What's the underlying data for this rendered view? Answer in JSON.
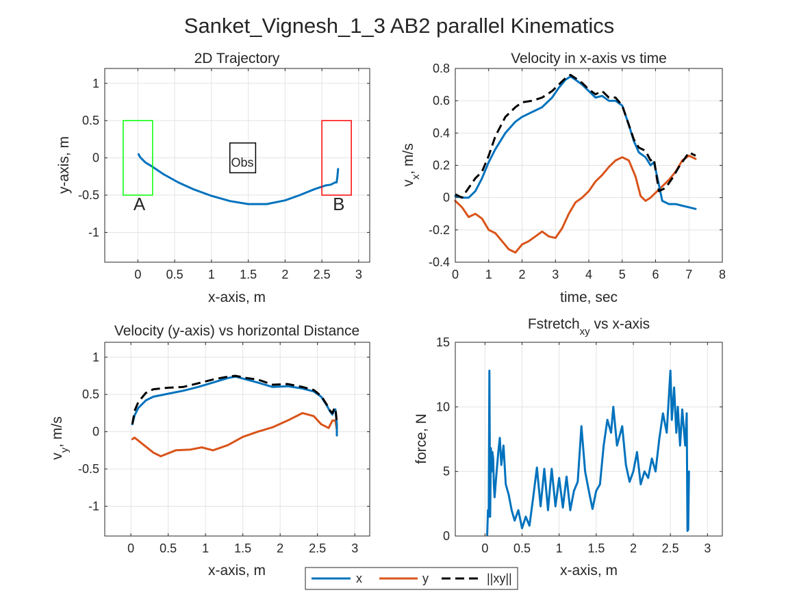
{
  "figure": {
    "suptitle": "Sanket_Vignesh_1_3    AB2    parallel    Kinematics"
  },
  "colors": {
    "x": "#0072BD",
    "y": "#D95319",
    "xy": "#000000",
    "startBox": "#00FF00",
    "endBox": "#FF0000",
    "obsBox": "#000000"
  },
  "legend": {
    "items": [
      {
        "label": "x",
        "key": "x"
      },
      {
        "label": "y",
        "key": "y"
      },
      {
        "label": "||xy||",
        "key": "xy"
      }
    ]
  },
  "chart_data": [
    {
      "id": "trajectory",
      "type": "line",
      "title": "2D Trajectory",
      "xlabel": "x-axis, m",
      "ylabel": "y-axis, m",
      "xlim": [
        -0.45,
        3.15
      ],
      "ylim": [
        -1.4,
        1.2
      ],
      "xticks": [
        "0",
        "0.5",
        "1",
        "1.5",
        "2",
        "2.5",
        "3"
      ],
      "yticks": [
        "-1",
        "-0.5",
        "0",
        "0.5",
        "1"
      ],
      "grid": true,
      "annotations": [
        {
          "text": "A",
          "x": 0.02,
          "y": -0.62
        },
        {
          "text": "B",
          "x": 2.73,
          "y": -0.62
        },
        {
          "text": "Obs",
          "x": 1.42,
          "y": -0.06
        }
      ],
      "boxes": [
        {
          "key": "startBox",
          "x0": -0.2,
          "x1": 0.2,
          "y0": -0.5,
          "y1": 0.5
        },
        {
          "key": "endBox",
          "x0": 2.5,
          "x1": 2.9,
          "y0": -0.5,
          "y1": 0.5
        },
        {
          "key": "obsBox",
          "x0": 1.25,
          "x1": 1.6,
          "y0": -0.2,
          "y1": 0.2
        }
      ],
      "series": [
        {
          "key": "x",
          "x": [
            0.01,
            0.03,
            0.06,
            0.1,
            0.2,
            0.35,
            0.55,
            0.75,
            1.0,
            1.25,
            1.5,
            1.75,
            2.0,
            2.2,
            2.4,
            2.55,
            2.62,
            2.66,
            2.68,
            2.7,
            2.71,
            2.72
          ],
          "y": [
            0.05,
            0.01,
            -0.02,
            -0.06,
            -0.12,
            -0.22,
            -0.33,
            -0.42,
            -0.51,
            -0.58,
            -0.62,
            -0.62,
            -0.57,
            -0.5,
            -0.42,
            -0.37,
            -0.36,
            -0.34,
            -0.33,
            -0.33,
            -0.26,
            -0.15
          ]
        }
      ]
    },
    {
      "id": "vx_time",
      "type": "line",
      "title": "Velocity in x-axis vs time",
      "xlabel": "time, sec",
      "ylabel": "v",
      "ylabel_sub": "x",
      "ylabel_suffix": ", m/s",
      "xlim": [
        0,
        8
      ],
      "ylim": [
        -0.4,
        0.8
      ],
      "xticks": [
        "0",
        "1",
        "2",
        "3",
        "4",
        "5",
        "6",
        "7",
        "8"
      ],
      "yticks": [
        "-0.4",
        "-0.2",
        "0",
        "0.2",
        "0.4",
        "0.6",
        "0.8"
      ],
      "grid": true,
      "series": [
        {
          "key": "x",
          "x": [
            0,
            0.2,
            0.4,
            0.6,
            0.8,
            1.0,
            1.2,
            1.5,
            1.8,
            2.0,
            2.3,
            2.6,
            2.9,
            3.1,
            3.3,
            3.45,
            3.6,
            3.8,
            4.0,
            4.2,
            4.4,
            4.6,
            4.8,
            5.0,
            5.2,
            5.35,
            5.5,
            5.7,
            5.85,
            5.95,
            6.1,
            6.2,
            6.4,
            6.6,
            6.8,
            7.0,
            7.2
          ],
          "y": [
            0.01,
            0.0,
            0.0,
            0.04,
            0.12,
            0.22,
            0.3,
            0.4,
            0.47,
            0.5,
            0.53,
            0.56,
            0.62,
            0.68,
            0.73,
            0.75,
            0.73,
            0.7,
            0.66,
            0.62,
            0.63,
            0.6,
            0.6,
            0.57,
            0.45,
            0.35,
            0.28,
            0.25,
            0.2,
            0.22,
            0.08,
            -0.02,
            -0.04,
            -0.04,
            -0.05,
            -0.06,
            -0.07
          ]
        },
        {
          "key": "y",
          "x": [
            0,
            0.2,
            0.4,
            0.6,
            0.8,
            1.0,
            1.2,
            1.4,
            1.6,
            1.8,
            2.0,
            2.2,
            2.4,
            2.6,
            2.8,
            3.0,
            3.2,
            3.4,
            3.6,
            3.8,
            4.0,
            4.2,
            4.4,
            4.6,
            4.8,
            5.0,
            5.2,
            5.4,
            5.55,
            5.7,
            5.85,
            6.0,
            6.2,
            6.4,
            6.6,
            6.8,
            7.0,
            7.2
          ],
          "y": [
            -0.02,
            -0.06,
            -0.12,
            -0.1,
            -0.13,
            -0.2,
            -0.22,
            -0.27,
            -0.32,
            -0.34,
            -0.29,
            -0.27,
            -0.24,
            -0.21,
            -0.24,
            -0.25,
            -0.19,
            -0.1,
            -0.03,
            0.0,
            0.04,
            0.1,
            0.14,
            0.19,
            0.23,
            0.25,
            0.23,
            0.13,
            0.01,
            -0.02,
            0.0,
            0.03,
            0.07,
            0.11,
            0.16,
            0.23,
            0.26,
            0.24
          ]
        },
        {
          "key": "xy",
          "x": [
            0,
            0.2,
            0.4,
            0.6,
            0.8,
            1.0,
            1.2,
            1.5,
            1.8,
            2.0,
            2.3,
            2.6,
            2.9,
            3.1,
            3.3,
            3.45,
            3.6,
            3.8,
            4.0,
            4.2,
            4.4,
            4.6,
            4.8,
            5.0,
            5.2,
            5.35,
            5.5,
            5.7,
            5.85,
            5.95,
            6.1,
            6.3,
            6.5,
            6.7,
            6.9,
            7.0,
            7.2
          ],
          "y": [
            0.02,
            0.0,
            0.06,
            0.12,
            0.16,
            0.26,
            0.38,
            0.5,
            0.56,
            0.59,
            0.6,
            0.62,
            0.66,
            0.7,
            0.74,
            0.76,
            0.74,
            0.71,
            0.67,
            0.64,
            0.66,
            0.62,
            0.62,
            0.57,
            0.45,
            0.36,
            0.31,
            0.29,
            0.23,
            0.24,
            0.04,
            0.06,
            0.12,
            0.19,
            0.25,
            0.28,
            0.26
          ]
        }
      ]
    },
    {
      "id": "vy_x",
      "type": "line",
      "title": "Velocity (y-axis) vs horizontal Distance",
      "xlabel": "x-axis, m",
      "ylabel": "v",
      "ylabel_sub": "y",
      "ylabel_suffix": ", m/s",
      "xlim": [
        -0.35,
        3.2
      ],
      "ylim": [
        -1.4,
        1.2
      ],
      "xticks": [
        "0",
        "0.5",
        "1",
        "1.5",
        "2",
        "2.5",
        "3"
      ],
      "yticks": [
        "-1",
        "-0.5",
        "0",
        "0.5",
        "1"
      ],
      "grid": true,
      "series": [
        {
          "key": "x",
          "x": [
            0.02,
            0.05,
            0.1,
            0.2,
            0.3,
            0.5,
            0.7,
            0.9,
            1.1,
            1.3,
            1.4,
            1.55,
            1.7,
            1.9,
            2.1,
            2.3,
            2.45,
            2.55,
            2.62,
            2.67,
            2.7,
            2.72,
            2.74,
            2.76,
            2.76
          ],
          "y": [
            0.1,
            0.22,
            0.32,
            0.42,
            0.47,
            0.51,
            0.55,
            0.6,
            0.66,
            0.72,
            0.74,
            0.7,
            0.66,
            0.6,
            0.61,
            0.58,
            0.54,
            0.47,
            0.36,
            0.27,
            0.23,
            0.28,
            0.3,
            0.1,
            -0.05
          ]
        },
        {
          "key": "y",
          "x": [
            0.02,
            0.05,
            0.1,
            0.2,
            0.3,
            0.4,
            0.5,
            0.6,
            0.8,
            0.95,
            1.1,
            1.3,
            1.5,
            1.7,
            1.9,
            2.1,
            2.3,
            2.45,
            2.55,
            2.65,
            2.7,
            2.74,
            2.76
          ],
          "y": [
            -0.1,
            -0.08,
            -0.12,
            -0.2,
            -0.28,
            -0.33,
            -0.29,
            -0.25,
            -0.24,
            -0.21,
            -0.25,
            -0.18,
            -0.07,
            0.0,
            0.06,
            0.15,
            0.25,
            0.21,
            0.1,
            0.05,
            0.15,
            0.15,
            0.02
          ]
        },
        {
          "key": "xy",
          "x": [
            0.02,
            0.05,
            0.1,
            0.2,
            0.3,
            0.5,
            0.7,
            0.9,
            1.1,
            1.3,
            1.4,
            1.55,
            1.7,
            1.9,
            2.1,
            2.3,
            2.45,
            2.55,
            2.62,
            2.67,
            2.7,
            2.72,
            2.74,
            2.76
          ],
          "y": [
            0.1,
            0.28,
            0.4,
            0.52,
            0.57,
            0.59,
            0.6,
            0.65,
            0.7,
            0.74,
            0.75,
            0.72,
            0.7,
            0.63,
            0.64,
            0.6,
            0.56,
            0.48,
            0.37,
            0.28,
            0.25,
            0.3,
            0.32,
            0.12
          ]
        }
      ]
    },
    {
      "id": "fstretch",
      "type": "line",
      "title": "Fstretch",
      "title_sub": "xy",
      "title_suffix": " vs x-axis",
      "xlabel": "x-axis, m",
      "ylabel": "force, N",
      "xlim": [
        -0.4,
        3.2
      ],
      "ylim": [
        0,
        15
      ],
      "xticks": [
        "0",
        "0.5",
        "1",
        "1.5",
        "2",
        "2.5",
        "3"
      ],
      "yticks": [
        "0",
        "5",
        "10",
        "15"
      ],
      "grid": true,
      "series": [
        {
          "key": "x",
          "x": [
            0.03,
            0.04,
            0.05,
            0.06,
            0.07,
            0.08,
            0.09,
            0.1,
            0.11,
            0.12,
            0.13,
            0.15,
            0.18,
            0.2,
            0.22,
            0.25,
            0.28,
            0.32,
            0.36,
            0.4,
            0.45,
            0.5,
            0.55,
            0.6,
            0.65,
            0.7,
            0.75,
            0.8,
            0.85,
            0.9,
            0.95,
            1.0,
            1.05,
            1.1,
            1.15,
            1.2,
            1.25,
            1.3,
            1.35,
            1.4,
            1.45,
            1.5,
            1.55,
            1.6,
            1.65,
            1.7,
            1.73,
            1.78,
            1.85,
            1.9,
            1.95,
            2.0,
            2.05,
            2.1,
            2.15,
            2.2,
            2.25,
            2.3,
            2.35,
            2.4,
            2.45,
            2.5,
            2.52,
            2.55,
            2.58,
            2.6,
            2.63,
            2.66,
            2.7,
            2.72,
            2.73,
            2.74,
            2.75
          ],
          "y": [
            0.1,
            2.0,
            1.5,
            12.8,
            1.5,
            6.8,
            5.0,
            6.5,
            6.0,
            4.0,
            3.0,
            4.5,
            6.5,
            7.6,
            5.5,
            7.0,
            4.0,
            3.2,
            2.0,
            1.2,
            2.0,
            0.6,
            1.5,
            0.8,
            3.0,
            5.3,
            2.3,
            5.2,
            2.0,
            5.2,
            2.3,
            4.5,
            2.2,
            4.6,
            2.0,
            3.5,
            4.2,
            8.5,
            5.0,
            3.5,
            2.1,
            3.5,
            4.0,
            7.0,
            9.0,
            8.0,
            10.0,
            7.0,
            8.5,
            5.5,
            4.2,
            5.0,
            6.5,
            4.0,
            5.0,
            4.5,
            6.0,
            5.0,
            7.5,
            9.5,
            8.0,
            12.8,
            9.0,
            11.5,
            8.0,
            10.0,
            7.0,
            9.8,
            7.0,
            9.5,
            0.4,
            0.5,
            5.0
          ]
        }
      ]
    }
  ]
}
